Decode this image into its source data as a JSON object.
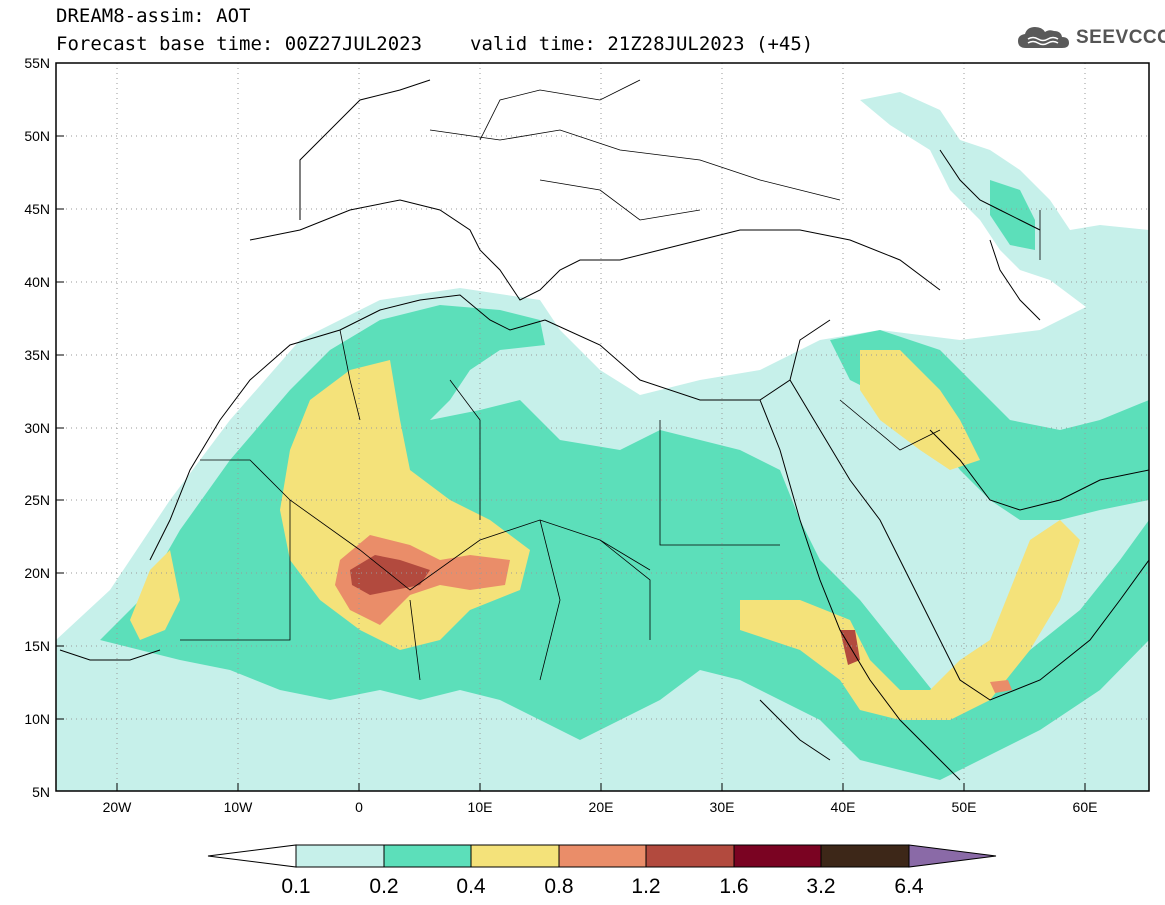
{
  "header": {
    "line1": "DREAM8-assim: AOT",
    "line2_base": "Forecast base time: 00Z27JUL2023",
    "line2_valid": "valid time: 21Z28JUL2023 (+45)"
  },
  "logo": {
    "text": "SEEVCCC",
    "icon": "cloud-icon"
  },
  "axes": {
    "lon_range": [
      -25,
      65
    ],
    "lat_range": [
      5,
      55
    ],
    "y_ticks": [
      "55N",
      "50N",
      "45N",
      "40N",
      "35N",
      "30N",
      "25N",
      "20N",
      "15N",
      "10N",
      "5N"
    ],
    "x_ticks": [
      "20W",
      "10W",
      "0",
      "10E",
      "20E",
      "30E",
      "40E",
      "50E",
      "60E"
    ],
    "grid": "dotted"
  },
  "colorbar": {
    "labels": [
      "0.1",
      "0.2",
      "0.4",
      "0.8",
      "1.2",
      "1.6",
      "3.2",
      "6.4"
    ],
    "colors": [
      "#ffffff",
      "#c6f0ea",
      "#5cdfba",
      "#f4e27a",
      "#ea8d69",
      "#b24a3e",
      "#7a0322",
      "#3d2718",
      "#8a6aa7"
    ]
  }
}
